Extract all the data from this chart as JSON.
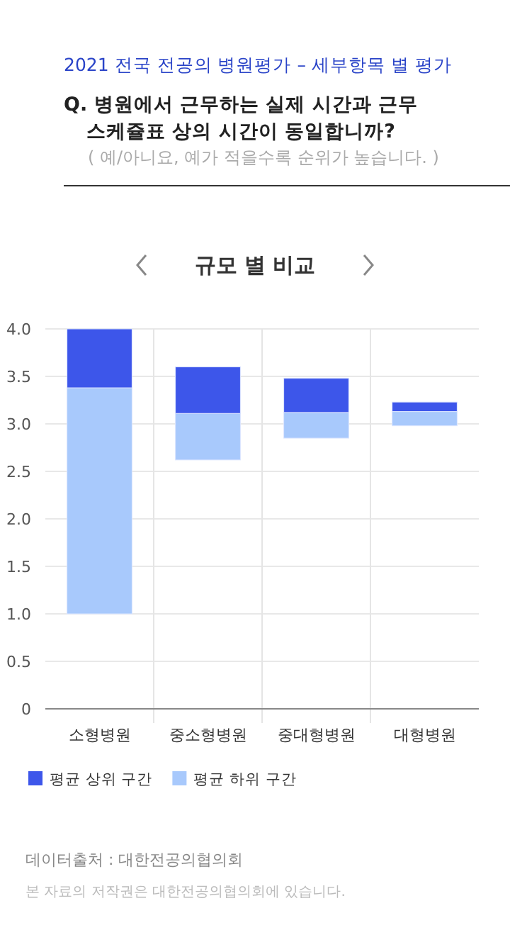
{
  "chart_data": {
    "type": "bar",
    "title": "2021 전국 전공의 병원평가 – 세부항목 별 평가",
    "subtitle": "Q. 병원에서 근무하는 실제 시간과 근무 스케쥴표 상의 시간이 동일합니까?",
    "annotations": [
      "( 예/아니요, 예가 적을수록 순위가 높습니다. )",
      "규모 별 비교",
      "데이터출처 : 대한전공의협의회",
      "본 자료의 저작권은 대한전공의협의회에 있습니다."
    ],
    "categories": [
      "소형병원",
      "중소형병원",
      "중대형병원",
      "대형병원"
    ],
    "series": [
      {
        "name": "평균 하위 구간",
        "color": "#a8c9fc",
        "base": [
          1.0,
          2.62,
          2.85,
          2.98
        ],
        "values": [
          2.38,
          0.49,
          0.27,
          0.15
        ]
      },
      {
        "name": "평균 상위 구간",
        "color": "#3d56ea",
        "base": [
          3.38,
          3.11,
          3.12,
          3.13
        ],
        "values": [
          0.62,
          0.49,
          0.36,
          0.1
        ]
      }
    ],
    "ylim": [
      0,
      4
    ],
    "yticks": [
      0,
      0.5,
      {
        "value": 1,
        "label": "1.0"
      },
      1.5,
      {
        "value": 2,
        "label": "2.0"
      },
      2.5,
      {
        "value": 3,
        "label": "3.0"
      },
      3.5,
      {
        "value": 4,
        "label": "4.0"
      }
    ],
    "grid": true,
    "legend": "bottom"
  }
}
